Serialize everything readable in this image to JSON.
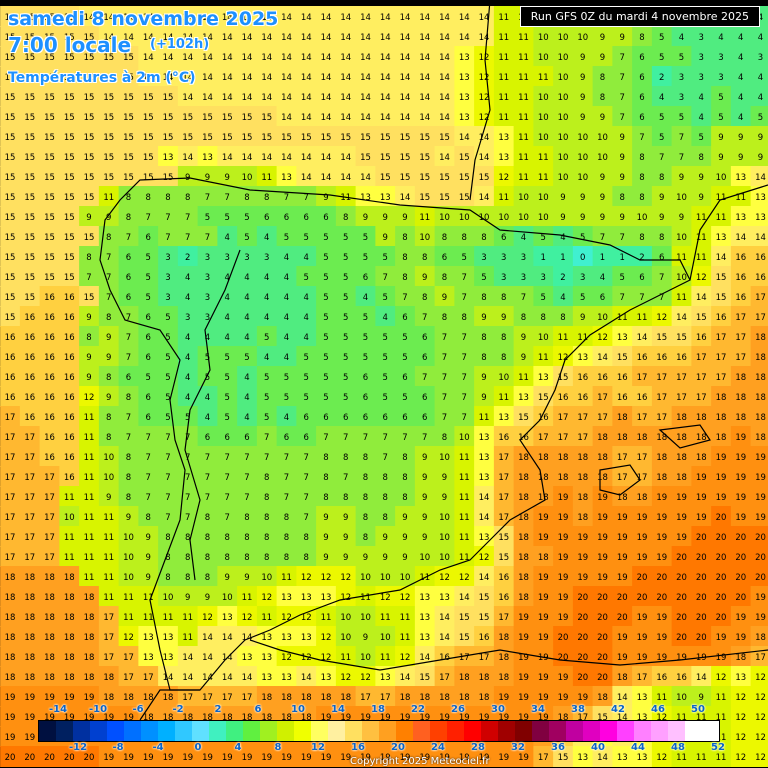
{
  "header": {
    "date": "samedi 8 novembre 2025",
    "time": "7:00 locale",
    "lead": "(+102h)",
    "variable": "Températures à 2m (°C)"
  },
  "run_info": "Run GFS 0Z du mardi 4 novembre 2025",
  "copyright": "Copyright 2025 Meteociel.fr",
  "legend": {
    "top_labels": [
      "-14",
      "-10",
      "-6",
      "-2",
      "2",
      "6",
      "10",
      "14",
      "18",
      "22",
      "26",
      "30",
      "34",
      "38",
      "42",
      "46",
      "50"
    ],
    "bottom_labels": [
      "-12",
      "-8",
      "-4",
      "0",
      "4",
      "8",
      "12",
      "16",
      "20",
      "24",
      "28",
      "32",
      "36",
      "40",
      "44",
      "48",
      "52"
    ],
    "colors": [
      "#001040",
      "#002060",
      "#0030a0",
      "#0040d0",
      "#0050ff",
      "#0070ff",
      "#0090ff",
      "#00b0ff",
      "#30c8ff",
      "#60e0ff",
      "#40f0c0",
      "#40f080",
      "#60f040",
      "#a0f020",
      "#d0f000",
      "#f0ff00",
      "#ffff60",
      "#fff0a0",
      "#ffe060",
      "#ffc040",
      "#ffa020",
      "#ff8000",
      "#ff6020",
      "#ff4000",
      "#ff2000",
      "#ff0000",
      "#d00000",
      "#a00000",
      "#800000",
      "#800040",
      "#a00060",
      "#c000a0",
      "#e000c0",
      "#ff00e0",
      "#ff40ff",
      "#ff80ff",
      "#ffa0ff",
      "#ffc0ff",
      "#ffffff",
      "#ffffff"
    ]
  },
  "grid": {
    "rows": [
      "15 15 15 15 14 14 14 14 14 14 14 14 14 14 14 14 14 14 14 14 14 14 14 14 14 11 11 10 10 10 9 9 8 5 4 3 4 4 4",
      "15 15 15 15 15 14 14 14 14 14 14 14 14 14 14 14 14 14 14 14 14 14 14 14 14 11 11 10 10 10 9 9 8 5 4 3 4 4 4",
      "15 15 15 15 15 15 15 14 14 14 14 14 14 14 14 14 14 14 14 14 14 14 14 13 12 11 11 10 10 9 9 7 6 5 5 3 3 4 3",
      "15 15 15 15 15 15 15 14 14 14 14 14 14 14 14 14 14 14 14 14 14 14 14 13 12 11 11 11 10 9 8 7 6 2 3 3 3 4 4",
      "15 15 15 15 15 15 15 15 15 14 14 14 14 14 14 14 14 14 14 14 14 14 14 13 12 11 11 10 10 9 8 7 6 4 3 4 5 4 4",
      "15 15 15 15 15 15 15 15 15 15 15 15 15 15 14 14 14 14 14 14 14 14 14 13 12 11 11 10 10 9 9 7 6 5 5 4 5 4 5",
      "15 15 15 15 15 15 15 15 15 15 15 15 15 15 15 15 15 15 15 15 15 15 15 14 14 13 11 10 10 10 10 9 7 5 7 5 9 9 9",
      "15 15 15 15 15 15 15 15 13 14 13 14 14 14 14 14 14 14 15 15 15 15 14 15 14 13 11 11 10 10 10 9 8 7 7 8 9 9 9",
      "15 15 15 15 15 15 15 15 15 9 9 9 10 11 13 14 14 14 14 15 15 15 15 15 15 12 11 11 10 10 9 9 8 8 9 9 10 13 14",
      "15 15 15 15 15 11 8 8 8 8 7 7 8 8 7 7 9 11 13 13 14 15 15 15 14 11 10 10 9 9 9 8 8 9 10 9 11 11 13",
      "15 15 15 15 9 9 8 7 7 7 5 5 5 6 6 6 6 8 9 9 9 11 10 10 10 10 10 10 9 9 9 9 10 9 9 11 11 13 13",
      "15 15 15 15 15 8 7 6 7 7 7 4 5 4 5 5 5 5 5 9 8 10 8 8 8 6 4 5 4 5 7 7 8 8 10 11 13 14 14",
      "15 15 15 15 8 7 6 5 3 2 3 3 3 3 4 4 5 5 5 5 8 8 6 5 3 3 3 1 1 0 1 1 2 6 11 11 14 16 16",
      "15 15 15 15 7 7 6 5 3 4 3 4 4 4 4 5 5 5 6 7 8 9 8 7 5 3 3 3 2 3 4 5 6 7 10 12 15 16 16",
      "15 15 16 16 15 7 6 5 3 4 3 4 4 4 4 4 5 5 4 5 7 8 9 7 8 8 7 5 4 5 6 7 7 7 11 14 15 16 17",
      "15 16 16 16 9 8 7 6 5 3 3 4 4 4 4 4 5 5 5 4 6 7 8 8 9 9 8 8 8 9 10 11 11 12 14 15 16 17 17",
      "16 16 16 16 8 9 7 6 5 4 4 4 4 5 4 4 5 5 5 5 5 6 7 7 8 8 9 10 11 11 12 13 14 15 15 16 17 17 18",
      "16 16 16 16 9 9 7 6 5 4 5 5 5 4 4 5 5 5 5 5 5 6 7 7 8 8 9 11 12 13 14 15 16 16 16 17 17 17 18",
      "16 16 16 16 9 8 6 5 5 4 5 5 4 5 5 5 5 5 6 5 6 7 7 7 9 10 11 13 15 16 16 16 17 17 17 17 17 18 18",
      "16 16 16 16 12 9 8 6 5 4 4 5 4 5 5 5 5 5 6 5 5 6 7 7 9 11 13 15 16 16 17 16 16 17 17 17 18 18 18",
      "17 16 16 16 11 8 7 6 5 5 4 5 4 5 4 6 6 6 6 6 6 6 7 7 11 13 15 16 17 17 17 18 17 17 18 18 18 18 18",
      "17 17 16 16 11 8 7 7 7 7 6 6 6 7 6 6 7 7 7 7 7 7 8 10 13 16 16 17 17 17 18 18 18 18 18 18 18 19 18",
      "17 17 16 16 11 10 8 7 7 7 7 7 7 7 7 7 8 8 8 7 8 9 10 11 13 17 18 18 18 18 18 17 17 18 18 18 19 19 19",
      "17 17 17 16 11 10 8 7 7 7 7 7 7 8 7 7 8 7 8 8 8 9 9 11 13 17 18 18 18 18 18 17 17 18 18 19 19 19 19",
      "17 17 17 11 11 9 8 7 7 7 7 7 7 8 7 7 8 8 8 8 8 9 9 11 14 17 18 18 19 18 19 18 18 19 19 19 19 19 19",
      "17 17 17 10 11 11 9 8 7 7 8 7 8 8 8 7 9 9 8 8 9 9 10 11 14 17 18 19 19 18 19 19 19 19 19 19 20 19 19",
      "17 17 17 11 11 11 10 9 8 8 8 8 8 8 8 8 9 9 8 9 9 9 10 11 13 15 18 19 19 19 19 19 19 19 19 20 20 20 20",
      "17 17 17 11 11 11 10 9 8 8 8 8 8 8 8 8 9 9 9 9 9 10 10 11 12 15 18 18 19 19 19 19 19 19 20 20 20 20 20",
      "18 18 18 18 11 11 10 9 8 8 8 9 9 10 11 12 12 12 10 10 10 11 12 12 14 16 18 19 19 19 19 19 20 20 20 20 20 20 20",
      "18 18 18 18 18 11 11 11 10 9 9 10 11 12 13 13 13 12 11 12 12 13 13 14 15 16 18 19 19 20 20 20 20 20 20 20 20 20 19",
      "18 18 18 18 18 17 11 11 11 11 12 13 12 11 12 12 11 10 10 11 11 13 14 15 15 17 19 19 19 20 20 20 19 19 20 20 20 19 19",
      "18 18 18 18 18 17 12 13 13 11 14 14 14 13 13 13 12 10 9 10 11 13 14 15 16 18 19 19 20 20 20 19 19 19 20 20 19 19 18",
      "18 18 18 18 18 17 17 13 13 14 14 14 13 13 12 12 12 11 10 11 12 14 16 17 17 18 19 19 20 20 20 19 19 19 19 19 19 18 17",
      "18 18 18 18 18 18 17 17 14 14 14 14 14 13 13 14 13 12 12 13 14 15 17 18 18 18 19 19 19 20 20 18 17 16 16 14 12 13 12",
      "19 19 19 19 19 18 18 18 18 17 17 17 17 18 18 18 18 18 17 17 18 18 18 18 18 19 19 19 19 19 18 14 13 11 10 9 11 12 12",
      "19 19 19 19 19 19 19 18 18 18 18 18 18 18 18 18 19 19 19 19 19 19 19 19 19 19 19 19 18 17 15 14 13 12 11 11 11 12 12",
      "19 19 19 19 19 19 19 19 19 19 19 19 19 19 19 19 19 19 19 19 19 19 19 19 19 19 19 18 16 14 13 14 13 12 11 11 11 12 12",
      "20 20 20 20 20 19 19 19 19 19 19 19 19 19 19 19 19 19 19 19 19 19 19 19 19 19 19 17 15 13 14 13 13 12 11 11 11 12 12"
    ]
  }
}
